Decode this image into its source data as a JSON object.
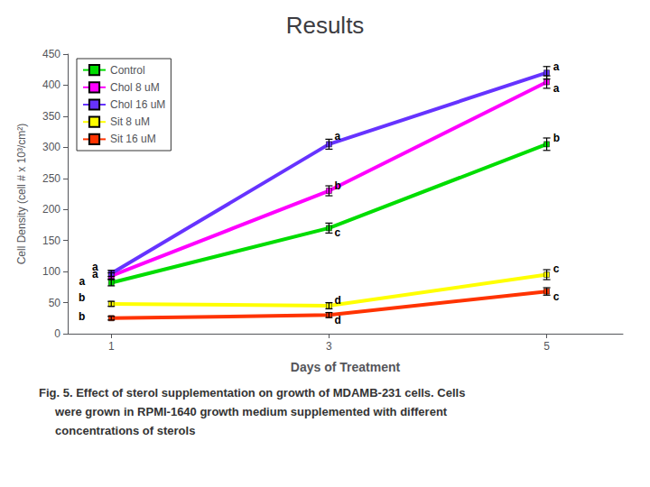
{
  "chart_data": {
    "type": "line",
    "title": "Results",
    "xlabel": "Days of Treatment",
    "ylabel": "Cell Density (cell # x 10³/cm²)",
    "x": [
      1,
      3,
      5
    ],
    "xlim": [
      0.6,
      5.7
    ],
    "xticks": [
      1,
      3,
      5
    ],
    "ylim": [
      0,
      450
    ],
    "yticks": [
      0,
      50,
      100,
      150,
      200,
      250,
      300,
      350,
      400,
      450
    ],
    "grid": false,
    "legend": "upper left",
    "marker": "square",
    "series": [
      {
        "name": "Control",
        "color": "#00DD00",
        "values": [
          82,
          170,
          305
        ],
        "yerr": [
          5,
          8,
          10
        ]
      },
      {
        "name": "Chol 8 uM",
        "color": "#FF00FF",
        "values": [
          93,
          230,
          405
        ],
        "yerr": [
          5,
          8,
          10
        ]
      },
      {
        "name": "Chol 16 uM",
        "color": "#6633FF",
        "values": [
          97,
          305,
          420
        ],
        "yerr": [
          5,
          8,
          10
        ]
      },
      {
        "name": "Sit 8 uM",
        "color": "#FFFF00",
        "values": [
          48,
          45,
          95
        ],
        "yerr": [
          4,
          5,
          8
        ]
      },
      {
        "name": "Sit 16 uM",
        "color": "#FF3300",
        "values": [
          25,
          30,
          68
        ],
        "yerr": [
          3,
          4,
          6
        ]
      }
    ],
    "annotations": [
      {
        "text": "a",
        "x": 0.88,
        "y": 108
      },
      {
        "text": "a",
        "x": 0.88,
        "y": 96
      },
      {
        "text": "a",
        "x": 0.76,
        "y": 84
      },
      {
        "text": "b",
        "x": 0.76,
        "y": 58
      },
      {
        "text": "b",
        "x": 0.76,
        "y": 28
      },
      {
        "text": "a",
        "x": 3.05,
        "y": 318
      },
      {
        "text": "b",
        "x": 3.05,
        "y": 238
      },
      {
        "text": "c",
        "x": 3.05,
        "y": 162
      },
      {
        "text": "d",
        "x": 3.05,
        "y": 54
      },
      {
        "text": "d",
        "x": 3.05,
        "y": 22
      },
      {
        "text": "a",
        "x": 5.06,
        "y": 430
      },
      {
        "text": "a",
        "x": 5.06,
        "y": 395
      },
      {
        "text": "b",
        "x": 5.06,
        "y": 315
      },
      {
        "text": "c",
        "x": 5.06,
        "y": 104
      },
      {
        "text": "c",
        "x": 5.06,
        "y": 60
      }
    ],
    "caption": [
      "Fig. 5. Effect of sterol supplementation on growth of MDAMB-231 cells. Cells",
      "     were grown in RPMI-1640 growth medium supplemented with different",
      "     concentrations of sterols"
    ]
  }
}
